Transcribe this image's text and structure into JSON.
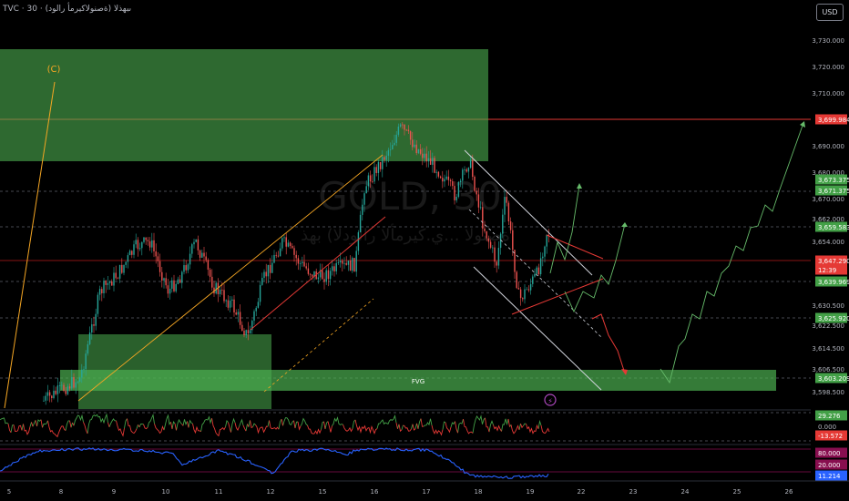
{
  "header": {
    "symbol_line": "TVC · 30 · ىبهذلا (ةصنولاكيرمأ رالود)"
  },
  "currency_button": "USD",
  "watermark": {
    "line1": "GOLD, 30",
    "line2": "ةصنولا ...ي.كيرمألا رالودلا) بهذ"
  },
  "colors": {
    "background": "#000000",
    "bull_candle": "#26a69a",
    "bear_candle": "#ef5350",
    "zone_fill": "#4caf50",
    "fib_orange": "#f5a623",
    "channel_white": "#d1d4dc",
    "red_line": "#e53935",
    "projection_green": "#66bb6a",
    "rsi_line": "#2962ff"
  },
  "chart_data": {
    "type": "candlestick",
    "y_axis_ticks": [
      "3,730.000",
      "3,720.000",
      "3,710.000",
      "3,690.000",
      "3,680.000",
      "3,670.000",
      "3,662.000",
      "3,654.000",
      "3,630.500",
      "3,622.500",
      "3,614.500",
      "3,606.500",
      "3,598.500"
    ],
    "x_axis_labels": [
      "5",
      "8",
      "9",
      "10",
      "11",
      "12",
      "15",
      "16",
      "17",
      "18",
      "19",
      "22",
      "23",
      "24",
      "25",
      "26"
    ],
    "price_labels": [
      {
        "value": "3,699.984",
        "color": "#e53935"
      },
      {
        "value": "3,673.375",
        "color": "#43a047"
      },
      {
        "value": "3,671.375",
        "color": "#43a047"
      },
      {
        "value": "3,659.583",
        "color": "#43a047"
      },
      {
        "value": "3,647.290",
        "color": "#e53935"
      },
      {
        "value": "12:39",
        "color": "#e53935"
      },
      {
        "value": "3,639.969",
        "color": "#43a047"
      },
      {
        "value": "3,625.920",
        "color": "#43a047"
      },
      {
        "value": "3,603.209",
        "color": "#43a047"
      }
    ],
    "annotations": {
      "wave_label": "(C)",
      "fvg_label": "FVG"
    },
    "oscillator_1_labels": [
      {
        "value": "29.276",
        "color": "#43a047"
      },
      {
        "value": "0.000",
        "color": "#b2b5be"
      },
      {
        "value": "-13.572",
        "color": "#e53935"
      }
    ],
    "oscillator_2_labels": [
      {
        "value": "80.000",
        "color": "#880e4f"
      },
      {
        "value": "20.000",
        "color": "#880e4f"
      },
      {
        "value": "11.214",
        "color": "#2962ff"
      }
    ]
  }
}
